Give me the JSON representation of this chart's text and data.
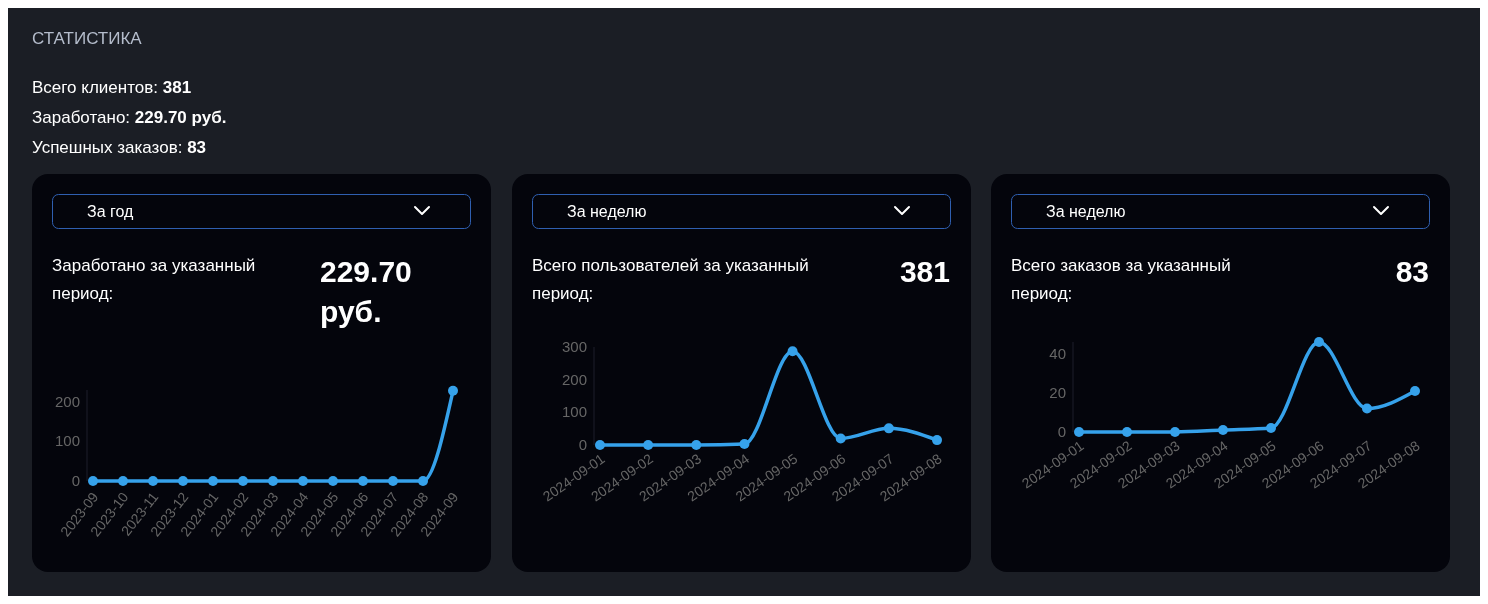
{
  "chart_data": [
    {
      "type": "other",
      "title": "СТАТИСТИКА",
      "annotations": [
        "Всего клиентов: 381",
        "Заработано: 229.70 руб.",
        "Успешных заказов: 83"
      ]
    },
    {
      "type": "line",
      "title": "Заработано за указанный период:",
      "subtitle": "229.70 руб.",
      "annotations": [
        "За год"
      ],
      "categories": [
        "2023-09",
        "2023-10",
        "2023-11",
        "2023-12",
        "2024-01",
        "2024-02",
        "2024-03",
        "2024-04",
        "2024-05",
        "2024-06",
        "2024-07",
        "2024-08",
        "2024-09"
      ],
      "series": [
        {
          "color": "#36a2eb",
          "values": [
            0,
            0,
            0,
            0,
            0,
            0,
            0,
            0,
            0,
            0,
            0,
            0,
            228
          ]
        }
      ],
      "ylim": [
        0,
        230
      ],
      "yticks": [
        0,
        100,
        200
      ],
      "marker": "circle"
    },
    {
      "type": "line",
      "title": "Всего пользователей за указанный период:",
      "subtitle": "381",
      "annotations": [
        "За неделю"
      ],
      "categories": [
        "2024-09-01",
        "2024-09-02",
        "2024-09-03",
        "2024-09-04",
        "2024-09-05",
        "2024-09-06",
        "2024-09-07",
        "2024-09-08"
      ],
      "series": [
        {
          "color": "#36a2eb",
          "values": [
            0,
            0,
            0,
            3,
            287,
            20,
            51,
            15
          ]
        }
      ],
      "ylim": [
        0,
        300
      ],
      "yticks": [
        0,
        100,
        200,
        300
      ],
      "marker": "circle"
    },
    {
      "type": "line",
      "title": "Всего заказов за указанный период:",
      "subtitle": "83",
      "annotations": [
        "За неделю"
      ],
      "categories": [
        "2024-09-01",
        "2024-09-02",
        "2024-09-03",
        "2024-09-04",
        "2024-09-05",
        "2024-09-06",
        "2024-09-07",
        "2024-09-08"
      ],
      "series": [
        {
          "color": "#36a2eb",
          "values": [
            0,
            0,
            0,
            1,
            2,
            46,
            12,
            21
          ]
        }
      ],
      "ylim": [
        0,
        46
      ],
      "yticks": [
        0,
        20,
        40
      ],
      "marker": "circle"
    }
  ]
}
